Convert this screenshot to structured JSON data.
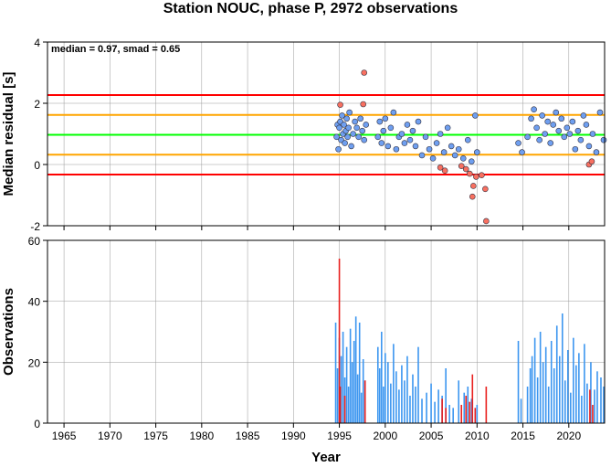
{
  "chart_data": [
    {
      "type": "scatter",
      "title": "Station NOUC, phase P, 2972 observations",
      "annotation": "median = 0.97, smad = 0.65",
      "ylabel": "Median residual [s]",
      "xlim": [
        1963.2,
        2023.9
      ],
      "ylim": [
        -2,
        4
      ],
      "yticks": [
        -2,
        0,
        2,
        4
      ],
      "grid": true,
      "reference_lines": [
        {
          "value": 2.27,
          "color": "#ff0000"
        },
        {
          "value": 1.62,
          "color": "#ffa500"
        },
        {
          "value": 0.97,
          "color": "#00ff00"
        },
        {
          "value": 0.32,
          "color": "#ffa500"
        },
        {
          "value": -0.33,
          "color": "#ff0000"
        }
      ],
      "series": [
        {
          "color": "#6f9ff0",
          "x": [
            1994.7,
            1994.8,
            1994.9,
            1995.0,
            1995.1,
            1995.2,
            1995.3,
            1995.4,
            1995.5,
            1995.6,
            1995.7,
            1995.8,
            1995.9,
            1996.0,
            1996.1,
            1996.3,
            1996.5,
            1996.7,
            1996.9,
            1997.1,
            1997.3,
            1997.5,
            1997.7,
            1997.9,
            1999.2,
            1999.4,
            1999.6,
            1999.8,
            2000.0,
            2000.3,
            2000.6,
            2000.9,
            2001.2,
            2001.5,
            2001.8,
            2002.1,
            2002.4,
            2002.7,
            2003.0,
            2003.3,
            2003.6,
            2004.0,
            2004.4,
            2004.8,
            2005.2,
            2005.6,
            2006.0,
            2006.4,
            2006.8,
            2007.2,
            2007.6,
            2008.0,
            2008.5,
            2009.0,
            2009.4,
            2009.8,
            2010.0,
            2014.5,
            2014.9,
            2015.5,
            2015.9,
            2016.2,
            2016.5,
            2016.8,
            2017.1,
            2017.4,
            2017.7,
            2018.0,
            2018.3,
            2018.6,
            2018.9,
            2019.2,
            2019.5,
            2019.8,
            2020.1,
            2020.4,
            2020.7,
            2021.0,
            2021.3,
            2021.6,
            2021.9,
            2022.2,
            2022.6,
            2023.0,
            2023.4,
            2023.8
          ],
          "values": [
            0.9,
            1.3,
            0.5,
            1.2,
            1.4,
            0.8,
            1.6,
            1.0,
            1.3,
            0.7,
            1.1,
            1.5,
            0.9,
            1.2,
            1.7,
            0.6,
            1.0,
            1.4,
            1.2,
            0.9,
            1.5,
            1.1,
            0.8,
            1.3,
            0.9,
            1.4,
            0.7,
            1.1,
            1.5,
            0.6,
            1.2,
            1.7,
            0.5,
            0.9,
            1.0,
            0.7,
            1.3,
            0.8,
            1.1,
            0.6,
            1.4,
            0.3,
            0.9,
            0.5,
            0.2,
            0.7,
            1.0,
            0.4,
            1.2,
            0.6,
            0.3,
            0.5,
            0.2,
            0.8,
            0.1,
            1.6,
            0.4,
            0.7,
            0.4,
            0.9,
            1.5,
            1.8,
            1.2,
            0.8,
            1.6,
            1.0,
            1.4,
            0.7,
            1.3,
            1.7,
            1.1,
            1.5,
            0.9,
            1.2,
            1.0,
            1.4,
            0.5,
            1.1,
            0.8,
            1.6,
            1.3,
            0.6,
            1.0,
            0.4,
            1.7,
            0.8
          ]
        },
        {
          "color": "#f87060",
          "x": [
            1995.1,
            1997.6,
            1997.7,
            2006.0,
            2006.5,
            2008.3,
            2008.8,
            2009.2,
            2009.5,
            2009.6,
            2009.9,
            2010.5,
            2010.9,
            2011.0,
            2022.2,
            2022.5
          ],
          "values": [
            1.95,
            1.97,
            3.0,
            -0.1,
            -0.2,
            -0.05,
            -0.15,
            -0.3,
            -1.05,
            -0.7,
            -0.4,
            -0.35,
            -0.8,
            -1.85,
            0.0,
            0.1
          ]
        }
      ]
    },
    {
      "type": "bar",
      "ylabel": "Observations",
      "xlabel": "Year",
      "xlim": [
        1963.2,
        2023.9
      ],
      "ylim": [
        0,
        60
      ],
      "yticks": [
        0,
        20,
        40,
        60
      ],
      "xticks": [
        1965,
        1970,
        1975,
        1980,
        1985,
        1990,
        1995,
        2000,
        2005,
        2010,
        2015,
        2020
      ],
      "grid": true,
      "series": [
        {
          "color": "#3c96f0",
          "x": [
            1994.6,
            1994.8,
            1995.0,
            1995.2,
            1995.4,
            1995.6,
            1995.8,
            1996.0,
            1996.2,
            1996.4,
            1996.6,
            1996.8,
            1997.0,
            1997.2,
            1997.4,
            1997.6,
            1997.8,
            1999.2,
            1999.4,
            1999.6,
            1999.8,
            2000.0,
            2000.3,
            2000.6,
            2000.9,
            2001.2,
            2001.5,
            2001.8,
            2002.1,
            2002.4,
            2002.7,
            2003.0,
            2003.3,
            2003.6,
            2004.0,
            2004.5,
            2005.0,
            2005.4,
            2005.8,
            2006.2,
            2006.6,
            2007.0,
            2007.4,
            2008.0,
            2008.6,
            2009.0,
            2009.4,
            2010.0,
            2014.5,
            2014.8,
            2015.5,
            2015.8,
            2016.0,
            2016.3,
            2016.6,
            2016.9,
            2017.2,
            2017.5,
            2017.8,
            2018.1,
            2018.4,
            2018.7,
            2019.0,
            2019.3,
            2019.6,
            2019.9,
            2020.2,
            2020.5,
            2020.8,
            2021.1,
            2021.4,
            2021.7,
            2022.0,
            2022.4,
            2022.8,
            2023.1,
            2023.5,
            2023.8
          ],
          "values": [
            33,
            18,
            28,
            22,
            30,
            15,
            25,
            12,
            31,
            20,
            27,
            35,
            16,
            33,
            10,
            21,
            14,
            25,
            18,
            30,
            12,
            23,
            20,
            13,
            26,
            17,
            11,
            19,
            14,
            22,
            9,
            16,
            12,
            25,
            8,
            10,
            13,
            7,
            11,
            9,
            18,
            6,
            5,
            14,
            10,
            12,
            8,
            6,
            27,
            8,
            12,
            18,
            22,
            28,
            15,
            30,
            20,
            25,
            12,
            27,
            18,
            32,
            22,
            36,
            14,
            24,
            10,
            28,
            19,
            23,
            9,
            26,
            13,
            20,
            11,
            17,
            15,
            12
          ]
        },
        {
          "color": "#e8201e",
          "x": [
            1995.0,
            1995.1,
            1995.6,
            1997.8,
            2006.2,
            2006.6,
            2008.3,
            2008.8,
            2009.2,
            2009.5,
            2009.8,
            2011.0,
            2022.3,
            2022.6
          ],
          "values": [
            54,
            12,
            9,
            14,
            8,
            5,
            6,
            9,
            7,
            16,
            5,
            12,
            11,
            6
          ]
        }
      ]
    }
  ]
}
